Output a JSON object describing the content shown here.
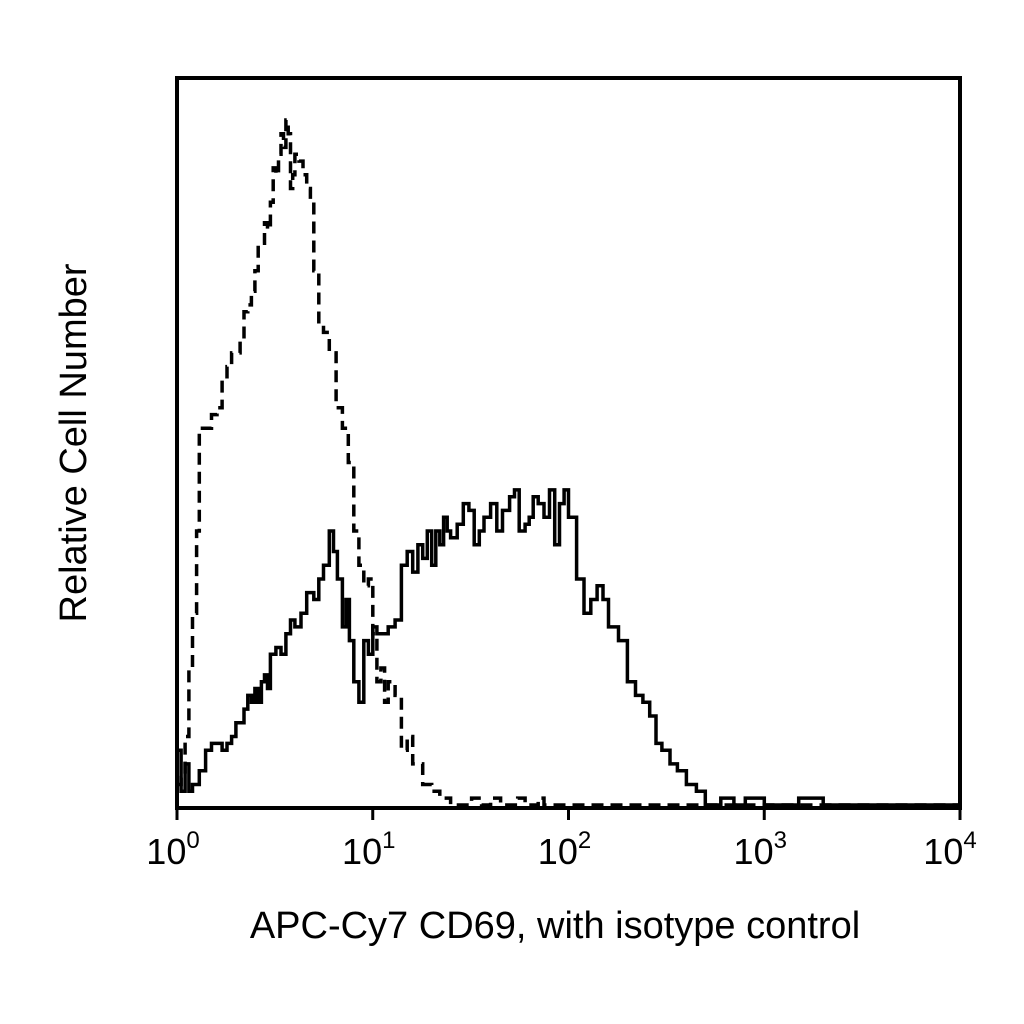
{
  "chart_data": {
    "type": "line",
    "title": "",
    "xlabel": "APC-Cy7 CD69, with isotype control",
    "ylabel": "Relative Cell Number",
    "x_scale": "log",
    "xlim": [
      1,
      10000
    ],
    "ylim": [
      0,
      100
    ],
    "grid": false,
    "legend": "none",
    "x_ticks": [
      {
        "value": 1,
        "base": "10",
        "exp": "0"
      },
      {
        "value": 10,
        "base": "10",
        "exp": "1"
      },
      {
        "value": 100,
        "base": "10",
        "exp": "2"
      },
      {
        "value": 1000,
        "base": "10",
        "exp": "3"
      },
      {
        "value": 10000,
        "base": "10",
        "exp": "4"
      }
    ],
    "series": [
      {
        "style": "dashed",
        "color": "#000000",
        "x": [
          1.0,
          1.05,
          1.1,
          1.15,
          1.2,
          1.26,
          1.3,
          1.4,
          1.5,
          1.6,
          1.7,
          1.8,
          1.9,
          2.0,
          2.1,
          2.2,
          2.3,
          2.4,
          2.5,
          2.6,
          2.7,
          2.8,
          2.9,
          3.0,
          3.1,
          3.2,
          3.3,
          3.4,
          3.5,
          3.6,
          3.7,
          3.8,
          3.9,
          4.0,
          4.2,
          4.4,
          4.6,
          4.8,
          5.0,
          5.3,
          5.6,
          6.0,
          6.5,
          7.0,
          7.5,
          8.0,
          8.5,
          9.0,
          9.5,
          10.0,
          10.5,
          11.0,
          11.5,
          12.0,
          13.0,
          14.0,
          15.0,
          16.0,
          18.0,
          20.0,
          22.0,
          25.0,
          28.0,
          32.0,
          36.0,
          40.0,
          45.0,
          50.0,
          55.0,
          60.0,
          65.0,
          70.0,
          75.0,
          80.0,
          90.0,
          100.0,
          120.0,
          150.0,
          200.0,
          300.0,
          500.0,
          1000.0,
          3000.0,
          10000.0
        ],
        "y": [
          3,
          4,
          10,
          20,
          28,
          40,
          55,
          55,
          57,
          58,
          62,
          64,
          66,
          66,
          68,
          72,
          73,
          75,
          78,
          82,
          82,
          85,
          84,
          88,
          93,
          92,
          95,
          98,
          96,
          100,
          98,
          90,
          92,
          95,
          94,
          92,
          90,
          88,
          78,
          70,
          69,
          66,
          58,
          55,
          50,
          40,
          35,
          32,
          33,
          25,
          18,
          20,
          15,
          18,
          16,
          8,
          10,
          6,
          3,
          2,
          1,
          0,
          0,
          1,
          0,
          1,
          0,
          0,
          1,
          0,
          0,
          1,
          0,
          0,
          0,
          0,
          0,
          0,
          0,
          0,
          0,
          0,
          0,
          0
        ]
      },
      {
        "style": "solid",
        "color": "#000000",
        "x": [
          1.0,
          1.05,
          1.1,
          1.15,
          1.2,
          1.3,
          1.4,
          1.5,
          1.6,
          1.7,
          1.8,
          1.9,
          2.0,
          2.1,
          2.2,
          2.3,
          2.4,
          2.5,
          2.6,
          2.7,
          2.8,
          2.9,
          3.0,
          3.2,
          3.4,
          3.6,
          3.8,
          4.0,
          4.3,
          4.6,
          5.0,
          5.3,
          5.6,
          6.0,
          6.3,
          6.6,
          7.0,
          7.3,
          7.6,
          8.0,
          8.5,
          9.0,
          9.5,
          10.0,
          10.5,
          11.0,
          12.0,
          13.0,
          14.0,
          15.0,
          16.0,
          17.0,
          18.0,
          19.0,
          20.0,
          21.0,
          22.0,
          23.0,
          24.0,
          25.0,
          27.0,
          29.0,
          31.0,
          33.0,
          35.0,
          37.0,
          40.0,
          43.0,
          46.0,
          50.0,
          53.0,
          56.0,
          60.0,
          63.0,
          66.0,
          70.0,
          75.0,
          80.0,
          85.0,
          90.0,
          95.0,
          100.0,
          110.0,
          120.0,
          130.0,
          140.0,
          150.0,
          160.0,
          180.0,
          200.0,
          220.0,
          240.0,
          260.0,
          280.0,
          300.0,
          330.0,
          360.0,
          400.0,
          450.0,
          500.0,
          600.0,
          700.0,
          800.0,
          1000.0,
          1500.0,
          2000.0,
          3000.0,
          4000.0,
          6000.0,
          10000.0
        ],
        "y": [
          8,
          2,
          6,
          2,
          3,
          5,
          8,
          9,
          9,
          8,
          9,
          10,
          12,
          12,
          14,
          16,
          15,
          17,
          15,
          18,
          19,
          17,
          22,
          23,
          22,
          25,
          27,
          26,
          28,
          31,
          30,
          33,
          35,
          40,
          37,
          33,
          26,
          30,
          24,
          18,
          15,
          24,
          22,
          26,
          25,
          25,
          26,
          27,
          35,
          37,
          34,
          38,
          36,
          40,
          35,
          40,
          38,
          42,
          40,
          39,
          41,
          44,
          43,
          38,
          40,
          42,
          44,
          40,
          43,
          45,
          46,
          40,
          41,
          42,
          45,
          44,
          42,
          46,
          38,
          44,
          46,
          42,
          33,
          28,
          30,
          32,
          30,
          26,
          24,
          18,
          16,
          15,
          13,
          9,
          8,
          6,
          5,
          3,
          2,
          0,
          1,
          0,
          1,
          0,
          1,
          0,
          0,
          0,
          0,
          0
        ]
      }
    ]
  }
}
